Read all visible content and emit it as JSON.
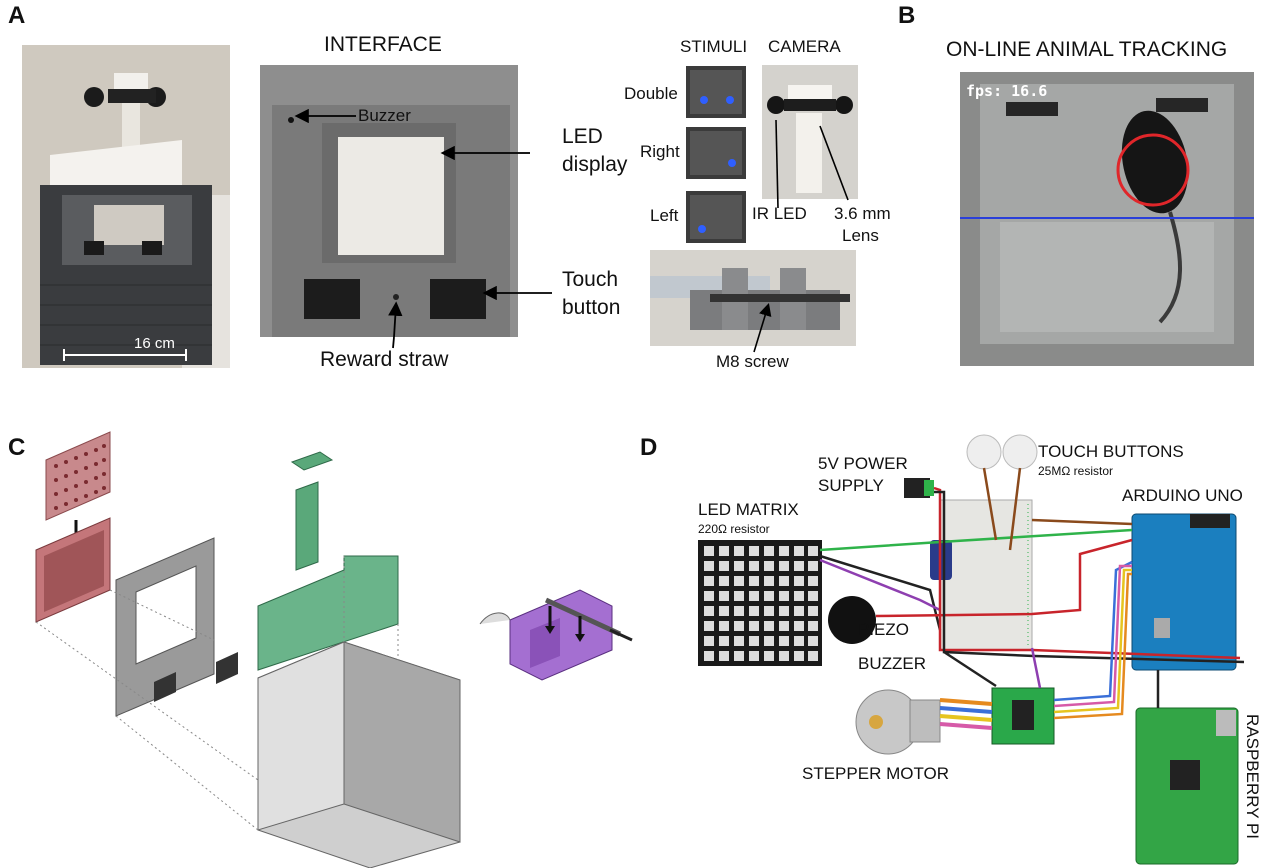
{
  "panels": {
    "a": "A",
    "b": "B",
    "c": "C",
    "d": "D"
  },
  "panel_a": {
    "scale_bar": "16 cm",
    "interface_title": "INTERFACE",
    "buzzer": "Buzzer",
    "led_display_1": "LED",
    "led_display_2": "display",
    "touch_button_1": "Touch",
    "touch_button_2": "button",
    "reward_straw": "Reward straw",
    "stimuli_title": "STIMULI",
    "camera_title": "CAMERA",
    "stim_double": "Double",
    "stim_right": "Right",
    "stim_left": "Left",
    "ir_led": "IR LED",
    "lens_1": "3.6 mm",
    "lens_2": "Lens",
    "m8_screw": "M8 screw"
  },
  "panel_b": {
    "title": "ON-LINE ANIMAL TRACKING",
    "fps": "fps: 16.6"
  },
  "panel_d": {
    "power_1": "5V POWER",
    "power_2": "SUPPLY",
    "touch_title": "TOUCH BUTTONS",
    "touch_sub": "25MΩ resistor",
    "arduino": "ARDUINO UNO",
    "led_matrix": "LED MATRIX",
    "led_sub": "220Ω resistor",
    "piezo_1": "PIEZO",
    "piezo_2": "BUZZER",
    "stepper": "STEPPER MOTOR",
    "raspberry": "RASPBERRY PI"
  },
  "colors": {
    "wire_red": "#c8242b",
    "wire_black": "#222222",
    "wire_green": "#2fb34a",
    "wire_purple": "#8e3fb0",
    "wire_orange": "#e58a1f",
    "wire_blue": "#3a6fd8",
    "wire_brown": "#8a4a1c",
    "part_green": "#5aa87a",
    "part_red": "#c4767a",
    "part_purple": "#a46fd1",
    "tracking_circle": "#e0262a",
    "tracking_line": "#2a3fd9"
  }
}
